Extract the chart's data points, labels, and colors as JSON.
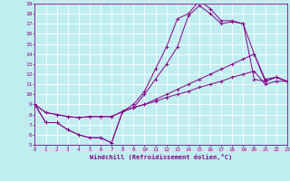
{
  "xlabel": "Windchill (Refroidissement éolien,°C)",
  "xlim": [
    0,
    23
  ],
  "ylim": [
    5,
    19
  ],
  "xticks": [
    0,
    1,
    2,
    3,
    4,
    5,
    6,
    7,
    8,
    9,
    10,
    11,
    12,
    13,
    14,
    15,
    16,
    17,
    18,
    19,
    20,
    21,
    22,
    23
  ],
  "yticks": [
    5,
    6,
    7,
    8,
    9,
    10,
    11,
    12,
    13,
    14,
    15,
    16,
    17,
    18,
    19
  ],
  "bg_color": "#c0eef0",
  "grid_color": "#b0dde0",
  "line_color": "#880088",
  "series": [
    [
      9.0,
      7.2,
      7.2,
      6.5,
      6.0,
      5.7,
      5.7,
      5.2,
      8.3,
      9.0,
      10.3,
      12.5,
      14.7,
      17.5,
      18.0,
      19.3,
      18.5,
      17.3,
      17.3,
      17.0,
      14.0,
      11.5,
      11.7,
      11.3
    ],
    [
      9.0,
      7.2,
      7.2,
      6.5,
      6.0,
      5.7,
      5.7,
      5.2,
      8.3,
      8.7,
      10.0,
      11.5,
      13.0,
      14.7,
      17.8,
      18.8,
      18.0,
      17.0,
      17.2,
      17.0,
      11.5,
      11.3,
      11.7,
      11.3
    ],
    [
      9.0,
      8.2,
      8.0,
      7.8,
      7.7,
      7.8,
      7.8,
      7.8,
      8.3,
      8.7,
      9.0,
      9.5,
      10.0,
      10.5,
      11.0,
      11.5,
      12.0,
      12.5,
      13.0,
      13.5,
      14.0,
      11.3,
      11.7,
      11.3
    ],
    [
      9.0,
      8.2,
      8.0,
      7.8,
      7.7,
      7.8,
      7.8,
      7.8,
      8.3,
      8.7,
      9.0,
      9.3,
      9.7,
      10.0,
      10.3,
      10.7,
      11.0,
      11.3,
      11.7,
      12.0,
      12.3,
      11.0,
      11.3,
      11.3
    ]
  ]
}
